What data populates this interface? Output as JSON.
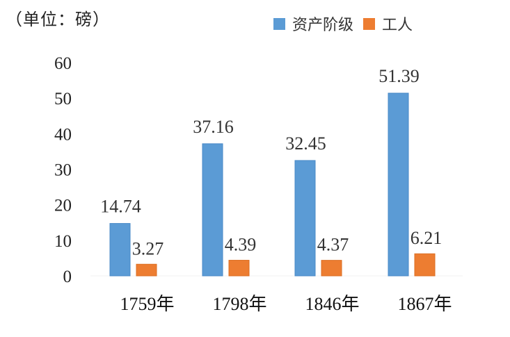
{
  "unit_label": "（单位：磅）",
  "legend": [
    {
      "name": "资产阶级",
      "color": "#5b9bd5"
    },
    {
      "name": "工人",
      "color": "#ed7d31"
    }
  ],
  "chart_data": {
    "type": "bar",
    "categories": [
      "1759年",
      "1798年",
      "1846年",
      "1867年"
    ],
    "series": [
      {
        "name": "资产阶级",
        "values": [
          14.74,
          37.16,
          32.45,
          51.39
        ],
        "labels": [
          "14.74",
          "37.16",
          "32.45",
          "51.39"
        ],
        "color": "#5b9bd5"
      },
      {
        "name": "工人",
        "values": [
          3.27,
          4.39,
          4.37,
          6.21
        ],
        "labels": [
          "3.27",
          "4.39",
          "4.37",
          "6.21"
        ],
        "color": "#ed7d31"
      }
    ],
    "yticks": [
      "0",
      "10",
      "20",
      "30",
      "40",
      "50",
      "60"
    ],
    "ylim": [
      0,
      60
    ],
    "grid": false,
    "legend_position": "top-right",
    "xlabel": "",
    "ylabel": ""
  }
}
